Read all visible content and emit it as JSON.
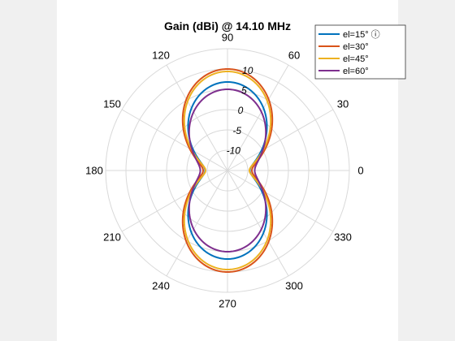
{
  "chart_data": {
    "type": "line",
    "subtype": "polar",
    "title": "Gain (dBi) @ 14.10 MHz",
    "theta_ticks": [
      {
        "angle": 0,
        "label": "0"
      },
      {
        "angle": 30,
        "label": "30"
      },
      {
        "angle": 60,
        "label": "60"
      },
      {
        "angle": 90,
        "label": "90"
      },
      {
        "angle": 120,
        "label": "120"
      },
      {
        "angle": 150,
        "label": "150"
      },
      {
        "angle": 180,
        "label": "180"
      },
      {
        "angle": 210,
        "label": "210"
      },
      {
        "angle": 240,
        "label": "240"
      },
      {
        "angle": 270,
        "label": "270"
      },
      {
        "angle": 300,
        "label": "300"
      },
      {
        "angle": 330,
        "label": "330"
      }
    ],
    "r_ticks": [
      {
        "value": -10,
        "label": "-10"
      },
      {
        "value": -5,
        "label": "-5"
      },
      {
        "value": 0,
        "label": "0"
      },
      {
        "value": 5,
        "label": "5"
      },
      {
        "value": 10,
        "label": "10"
      }
    ],
    "rlim": [
      -15,
      15
    ],
    "grid": true,
    "legend_position": "top-right",
    "series": [
      {
        "name": "el=15° ⓘ",
        "color": "#0072bd",
        "min_gain": -9.5,
        "max_gain": 6.8
      },
      {
        "name": "el=30°",
        "color": "#d95319",
        "min_gain": -9.0,
        "max_gain": 10.0
      },
      {
        "name": "el=45°",
        "color": "#edb120",
        "min_gain": -9.6,
        "max_gain": 9.4
      },
      {
        "name": "el=60°",
        "color": "#7e2f8e",
        "min_gain": -8.3,
        "max_gain": 5.0
      }
    ]
  }
}
